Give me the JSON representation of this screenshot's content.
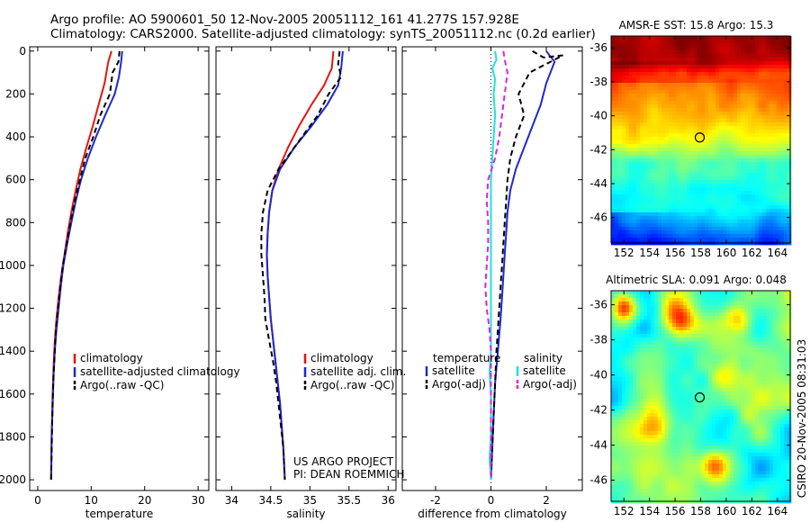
{
  "header": {
    "title_line1": "Argo profile: AO 5900601_50 12-Nov-2005 20051112_161 41.277S 157.928E",
    "title_line2": "Climatology: CARS2000. Satellite-adjusted climatology: synTS_20051112.nc (0.2d earlier)"
  },
  "colors": {
    "climatology": "#e8140c",
    "satellite": "#1e28d2",
    "argo": "#000000",
    "salinity_satellite": "#20e0e0",
    "salinity_argo": "#e020e0",
    "map_marker": "#000000"
  },
  "chart_data": [
    {
      "id": "temperature",
      "type": "line",
      "xlabel": "temperature",
      "ylabel": "",
      "xlim": [
        -1.5,
        32
      ],
      "ylim": [
        2050,
        -20
      ],
      "y_reversed": true,
      "xticks": [
        0,
        10,
        20,
        30
      ],
      "yticks": [
        0,
        200,
        400,
        600,
        800,
        1000,
        1200,
        1400,
        1600,
        1800,
        2000
      ],
      "legend": [
        "climatology",
        "satellite-adjusted climatology",
        "Argo(..raw -QC)"
      ],
      "legend_position": "lower-right",
      "series": [
        {
          "name": "climatology",
          "style": "solid",
          "color_key": "climatology",
          "points": [
            [
              13.8,
              0
            ],
            [
              13.2,
              50
            ],
            [
              12.5,
              150
            ],
            [
              11.4,
              250
            ],
            [
              10.3,
              350
            ],
            [
              9.1,
              450
            ],
            [
              8.0,
              550
            ],
            [
              7.1,
              650
            ],
            [
              6.3,
              750
            ],
            [
              5.6,
              850
            ],
            [
              5.0,
              950
            ],
            [
              4.4,
              1050
            ],
            [
              3.9,
              1150
            ],
            [
              3.5,
              1250
            ],
            [
              3.2,
              1350
            ],
            [
              3.0,
              1450
            ],
            [
              2.8,
              1600
            ],
            [
              2.6,
              1800
            ],
            [
              2.5,
              2000
            ]
          ]
        },
        {
          "name": "satellite-adjusted climatology",
          "style": "solid",
          "color_key": "satellite",
          "points": [
            [
              15.8,
              0
            ],
            [
              15.6,
              50
            ],
            [
              15.2,
              120
            ],
            [
              14.4,
              200
            ],
            [
              12.6,
              300
            ],
            [
              10.9,
              400
            ],
            [
              9.4,
              500
            ],
            [
              8.1,
              600
            ],
            [
              7.1,
              700
            ],
            [
              6.3,
              800
            ],
            [
              5.5,
              900
            ],
            [
              4.8,
              1000
            ],
            [
              4.3,
              1100
            ],
            [
              3.9,
              1200
            ],
            [
              3.5,
              1300
            ],
            [
              3.2,
              1400
            ],
            [
              3.0,
              1500
            ],
            [
              2.8,
              1650
            ],
            [
              2.6,
              1800
            ],
            [
              2.5,
              2000
            ]
          ]
        },
        {
          "name": "Argo(..raw -QC)",
          "style": "dashed",
          "color_key": "argo",
          "points": [
            [
              15.3,
              0
            ],
            [
              15.1,
              50
            ],
            [
              14.0,
              100
            ],
            [
              13.5,
              200
            ],
            [
              11.7,
              300
            ],
            [
              10.4,
              400
            ],
            [
              8.9,
              500
            ],
            [
              7.9,
              600
            ],
            [
              6.9,
              700
            ],
            [
              6.1,
              800
            ],
            [
              5.4,
              900
            ],
            [
              4.7,
              1000
            ],
            [
              4.2,
              1100
            ],
            [
              3.8,
              1200
            ],
            [
              3.4,
              1300
            ],
            [
              3.2,
              1400
            ],
            [
              2.9,
              1550
            ],
            [
              2.7,
              1750
            ],
            [
              2.5,
              2000
            ]
          ]
        }
      ]
    },
    {
      "id": "salinity",
      "type": "line",
      "xlabel": "salinity",
      "ylabel": "",
      "xlim": [
        33.8,
        36.1
      ],
      "ylim": [
        2050,
        -20
      ],
      "y_reversed": true,
      "xticks": [
        34,
        34.5,
        35,
        35.5,
        36
      ],
      "legend": [
        "climatology",
        "satellite adj. clim.",
        "Argo(..raw -QC)"
      ],
      "legend_position": "lower-right",
      "annotation_lines": [
        "US ARGO PROJECT",
        "PI: DEAN ROEMMICH"
      ],
      "series": [
        {
          "name": "climatology",
          "style": "solid",
          "color_key": "climatology",
          "points": [
            [
              35.3,
              0
            ],
            [
              35.28,
              80
            ],
            [
              35.18,
              160
            ],
            [
              35.02,
              250
            ],
            [
              34.86,
              350
            ],
            [
              34.72,
              450
            ],
            [
              34.6,
              550
            ],
            [
              34.52,
              650
            ],
            [
              34.48,
              750
            ],
            [
              34.46,
              850
            ],
            [
              34.45,
              950
            ],
            [
              34.46,
              1050
            ],
            [
              34.48,
              1150
            ],
            [
              34.5,
              1250
            ],
            [
              34.53,
              1350
            ],
            [
              34.56,
              1450
            ],
            [
              34.59,
              1550
            ],
            [
              34.62,
              1650
            ],
            [
              34.64,
              1750
            ],
            [
              34.66,
              1850
            ],
            [
              34.68,
              2000
            ]
          ]
        },
        {
          "name": "satellite adj. clim.",
          "style": "solid",
          "color_key": "satellite",
          "points": [
            [
              35.42,
              0
            ],
            [
              35.4,
              80
            ],
            [
              35.36,
              160
            ],
            [
              35.22,
              250
            ],
            [
              35.02,
              350
            ],
            [
              34.8,
              450
            ],
            [
              34.62,
              550
            ],
            [
              34.52,
              650
            ],
            [
              34.48,
              750
            ],
            [
              34.46,
              850
            ],
            [
              34.45,
              950
            ],
            [
              34.46,
              1050
            ],
            [
              34.48,
              1150
            ],
            [
              34.5,
              1250
            ],
            [
              34.53,
              1350
            ],
            [
              34.56,
              1450
            ],
            [
              34.59,
              1550
            ],
            [
              34.62,
              1650
            ],
            [
              34.64,
              1750
            ],
            [
              34.66,
              1850
            ],
            [
              34.68,
              2000
            ]
          ]
        },
        {
          "name": "Argo(..raw -QC)",
          "style": "dashed",
          "color_key": "argo",
          "points": [
            [
              35.38,
              0
            ],
            [
              35.36,
              60
            ],
            [
              35.4,
              120
            ],
            [
              35.24,
              200
            ],
            [
              35.1,
              300
            ],
            [
              34.8,
              450
            ],
            [
              34.6,
              550
            ],
            [
              34.46,
              650
            ],
            [
              34.4,
              750
            ],
            [
              34.38,
              850
            ],
            [
              34.38,
              950
            ],
            [
              34.4,
              1050
            ],
            [
              34.42,
              1150
            ],
            [
              34.43,
              1250
            ],
            [
              34.48,
              1350
            ],
            [
              34.53,
              1450
            ],
            [
              34.57,
              1550
            ],
            [
              34.6,
              1650
            ],
            [
              34.63,
              1750
            ],
            [
              34.66,
              1850
            ],
            [
              34.68,
              2000
            ]
          ]
        }
      ]
    },
    {
      "id": "difference",
      "type": "line",
      "xlabel": "difference from climatology",
      "ylabel": "",
      "xlim": [
        -3.2,
        3.3
      ],
      "ylim": [
        2050,
        -20
      ],
      "y_reversed": true,
      "xticks": [
        -2,
        0,
        2
      ],
      "legend_columns": [
        {
          "title": "temperature",
          "items": [
            "satellite",
            "Argo(-adj)"
          ]
        },
        {
          "title": "salinity",
          "items": [
            "satellite",
            "Argo(-adj)"
          ]
        }
      ],
      "legend_position": "lower-center",
      "series": [
        {
          "name": "temperature satellite",
          "style": "solid",
          "color_key": "satellite",
          "points": [
            [
              2.0,
              0
            ],
            [
              2.3,
              50
            ],
            [
              2.0,
              150
            ],
            [
              1.8,
              250
            ],
            [
              1.5,
              350
            ],
            [
              1.2,
              450
            ],
            [
              0.9,
              550
            ],
            [
              0.7,
              650
            ],
            [
              0.6,
              750
            ],
            [
              0.55,
              850
            ],
            [
              0.5,
              950
            ],
            [
              0.45,
              1050
            ],
            [
              0.4,
              1150
            ],
            [
              0.35,
              1250
            ],
            [
              0.25,
              1400
            ],
            [
              0.15,
              1550
            ],
            [
              0.1,
              1700
            ],
            [
              0.05,
              1850
            ],
            [
              0.0,
              2000
            ]
          ]
        },
        {
          "name": "temperature Argo(-adj)",
          "style": "dashed",
          "color_key": "argo",
          "points": [
            [
              1.5,
              0
            ],
            [
              1.9,
              30
            ],
            [
              2.6,
              20
            ],
            [
              1.4,
              100
            ],
            [
              1.0,
              200
            ],
            [
              1.2,
              300
            ],
            [
              0.9,
              400
            ],
            [
              0.7,
              500
            ],
            [
              0.6,
              600
            ],
            [
              0.55,
              700
            ],
            [
              0.5,
              800
            ],
            [
              0.45,
              900
            ],
            [
              0.4,
              1000
            ],
            [
              0.35,
              1100
            ],
            [
              0.3,
              1200
            ],
            [
              0.25,
              1300
            ],
            [
              0.2,
              1400
            ],
            [
              0.15,
              1550
            ],
            [
              0.1,
              1700
            ],
            [
              0.05,
              1850
            ],
            [
              0.0,
              2000
            ]
          ]
        },
        {
          "name": "salinity satellite",
          "style": "solid",
          "color_key": "salinity_satellite",
          "points": [
            [
              0.15,
              0
            ],
            [
              0.2,
              40
            ],
            [
              0.05,
              80
            ],
            [
              0.15,
              130
            ],
            [
              0.1,
              200
            ],
            [
              0.15,
              300
            ],
            [
              0.1,
              400
            ],
            [
              0.05,
              500
            ],
            [
              0.0,
              600
            ],
            [
              0.0,
              700
            ],
            [
              0.0,
              800
            ],
            [
              0.0,
              900
            ],
            [
              0.0,
              1000
            ],
            [
              0.0,
              1100
            ],
            [
              0.0,
              1200
            ],
            [
              0.0,
              1300
            ],
            [
              0.0,
              1400
            ],
            [
              -0.05,
              1500
            ],
            [
              0.0,
              1600
            ],
            [
              0.0,
              1700
            ],
            [
              0.0,
              1800
            ],
            [
              -0.05,
              1900
            ],
            [
              0.0,
              2000
            ]
          ]
        },
        {
          "name": "salinity Argo(-adj)",
          "style": "dashed",
          "color_key": "salinity_argo",
          "points": [
            [
              0.45,
              0
            ],
            [
              0.5,
              40
            ],
            [
              0.6,
              100
            ],
            [
              0.5,
              200
            ],
            [
              0.4,
              300
            ],
            [
              0.3,
              400
            ],
            [
              0.15,
              500
            ],
            [
              -0.1,
              600
            ],
            [
              -0.15,
              700
            ],
            [
              -0.1,
              800
            ],
            [
              -0.1,
              900
            ],
            [
              -0.15,
              1000
            ],
            [
              -0.2,
              1100
            ],
            [
              -0.15,
              1200
            ],
            [
              -0.05,
              1300
            ],
            [
              0.0,
              1400
            ],
            [
              0.0,
              1500
            ],
            [
              0.0,
              1600
            ],
            [
              0.0,
              1700
            ],
            [
              0.0,
              1800
            ],
            [
              0.0,
              1900
            ],
            [
              0.0,
              2000
            ]
          ]
        }
      ]
    },
    {
      "id": "sst_map",
      "type": "heatmap",
      "title": "AMSR-E SST: 15.8 Argo: 15.3",
      "xlim": [
        151,
        165
      ],
      "ylim": [
        -47.5,
        -35.3
      ],
      "xticks": [
        152,
        154,
        156,
        158,
        160,
        162,
        164
      ],
      "yticks": [
        -36,
        -38,
        -40,
        -42,
        -44,
        -46
      ],
      "marker": [
        157.93,
        -41.28
      ]
    },
    {
      "id": "sla_map",
      "type": "heatmap",
      "title": "Altimetric SLA: 0.091 Argo: 0.048",
      "xlim": [
        151,
        165
      ],
      "ylim": [
        -47.2,
        -35.2
      ],
      "xticks": [
        152,
        154,
        156,
        158,
        160,
        162,
        164
      ],
      "yticks": [
        -36,
        -38,
        -40,
        -42,
        -44,
        -46
      ],
      "marker": [
        157.93,
        -41.28
      ],
      "side_label": "CSIRO 20-Nov-2005 08:31:03"
    }
  ]
}
